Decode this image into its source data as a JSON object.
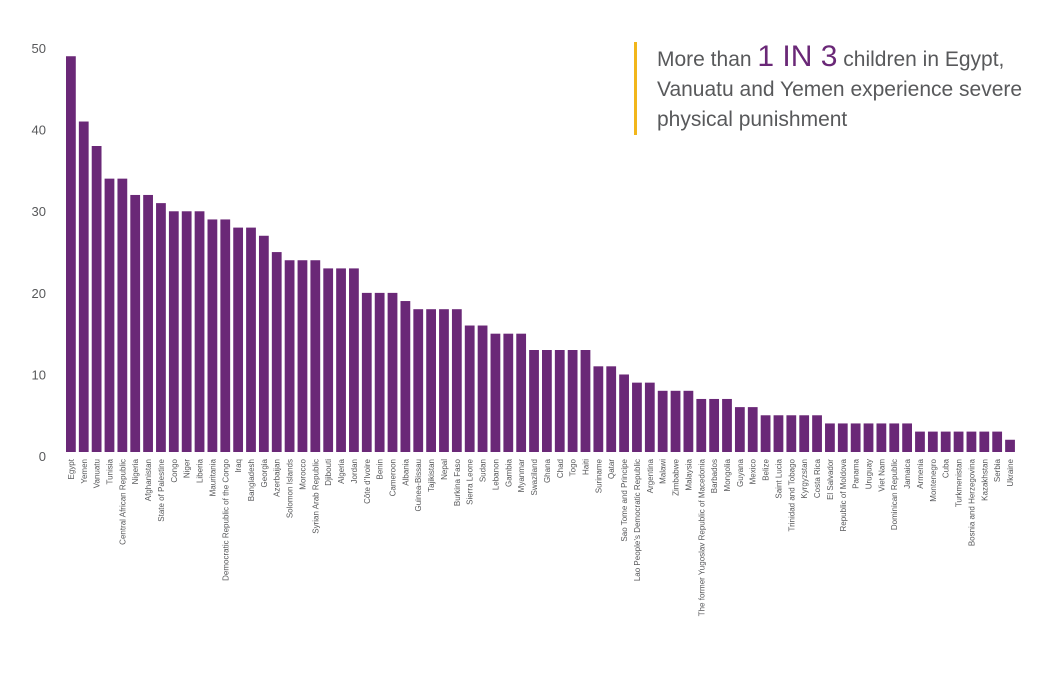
{
  "chart_data": {
    "type": "bar",
    "categories": [
      "Egypt",
      "Yemen",
      "Vanuatu",
      "Tunisia",
      "Central African Republic",
      "Nigeria",
      "Afghanistan",
      "State of Palestine",
      "Congo",
      "Niger",
      "Liberia",
      "Mauritania",
      "Democratic Republic of the Congo",
      "Iraq",
      "Bangladesh",
      "Georgia",
      "Azerbaijan",
      "Solomon Islands",
      "Morocco",
      "Syrian Arab Republic",
      "Djibouti",
      "Algeria",
      "Jordan",
      "Côte d’Ivoire",
      "Benin",
      "Cameroon",
      "Albania",
      "Guinea-Bissau",
      "Tajikistan",
      "Nepal",
      "Burkina Faso",
      "Sierra Leone",
      "Sudan",
      "Lebanon",
      "Gambia",
      "Myanmar",
      "Swaziland",
      "Ghana",
      "Chad",
      "Togo",
      "Haiti",
      "Suriname",
      "Qatar",
      "Sao Tome and Principe",
      "Lao People’s Democratic Republic",
      "Argentina",
      "Malawi",
      "Zimbabwe",
      "Malaysia",
      "The former Yugoslav Republic of Macedonia",
      "Barbados",
      "Mongolia",
      "Guyana",
      "Mexico",
      "Belize",
      "Saint Lucia",
      "Trinidad and Tobago",
      "Kyrgyzstan",
      "Costa Rica",
      "El Salvador",
      "Republic of Moldova",
      "Panama",
      "Uruguay",
      "Viet Nam",
      "Dominican Republic",
      "Jamaica",
      "Armenia",
      "Montenegro",
      "Cuba",
      "Turkmenistan",
      "Bosnia and Herzegovina",
      "Kazakhstan",
      "Serbia",
      "Ukraine"
    ],
    "values": [
      48.5,
      40.5,
      37.5,
      33.5,
      33.5,
      31.5,
      31.5,
      30.5,
      29.5,
      29.5,
      29.5,
      28.5,
      28.5,
      27.5,
      27.5,
      26.5,
      24.5,
      23.5,
      23.5,
      23.5,
      22.5,
      22.5,
      22.5,
      19.5,
      19.5,
      19.5,
      18.5,
      17.5,
      17.5,
      17.5,
      17.5,
      15.5,
      15.5,
      14.5,
      14.5,
      14.5,
      12.5,
      12.5,
      12.5,
      12.5,
      12.5,
      10.5,
      10.5,
      9.5,
      8.5,
      8.5,
      7.5,
      7.5,
      7.5,
      6.5,
      6.5,
      6.5,
      5.5,
      5.5,
      4.5,
      4.5,
      4.5,
      4.5,
      4.5,
      3.5,
      3.5,
      3.5,
      3.5,
      3.5,
      3.5,
      3.5,
      2.5,
      2.5,
      2.5,
      2.5,
      2.5,
      2.5,
      2.5,
      1.5
    ],
    "ylim": [
      0,
      50
    ],
    "yticks": [
      0,
      10,
      20,
      30,
      40,
      50
    ],
    "title": "",
    "xlabel": "",
    "ylabel": "",
    "grid": false,
    "bar_color": "#6a2877"
  },
  "callout": {
    "prefix": "More than ",
    "highlight": "1 IN 3",
    "suffix": " children in Egypt, Vanuatu and Yemen experience severe physical punishment",
    "accent_color": "#f2b61b",
    "highlight_color": "#6a2877"
  }
}
